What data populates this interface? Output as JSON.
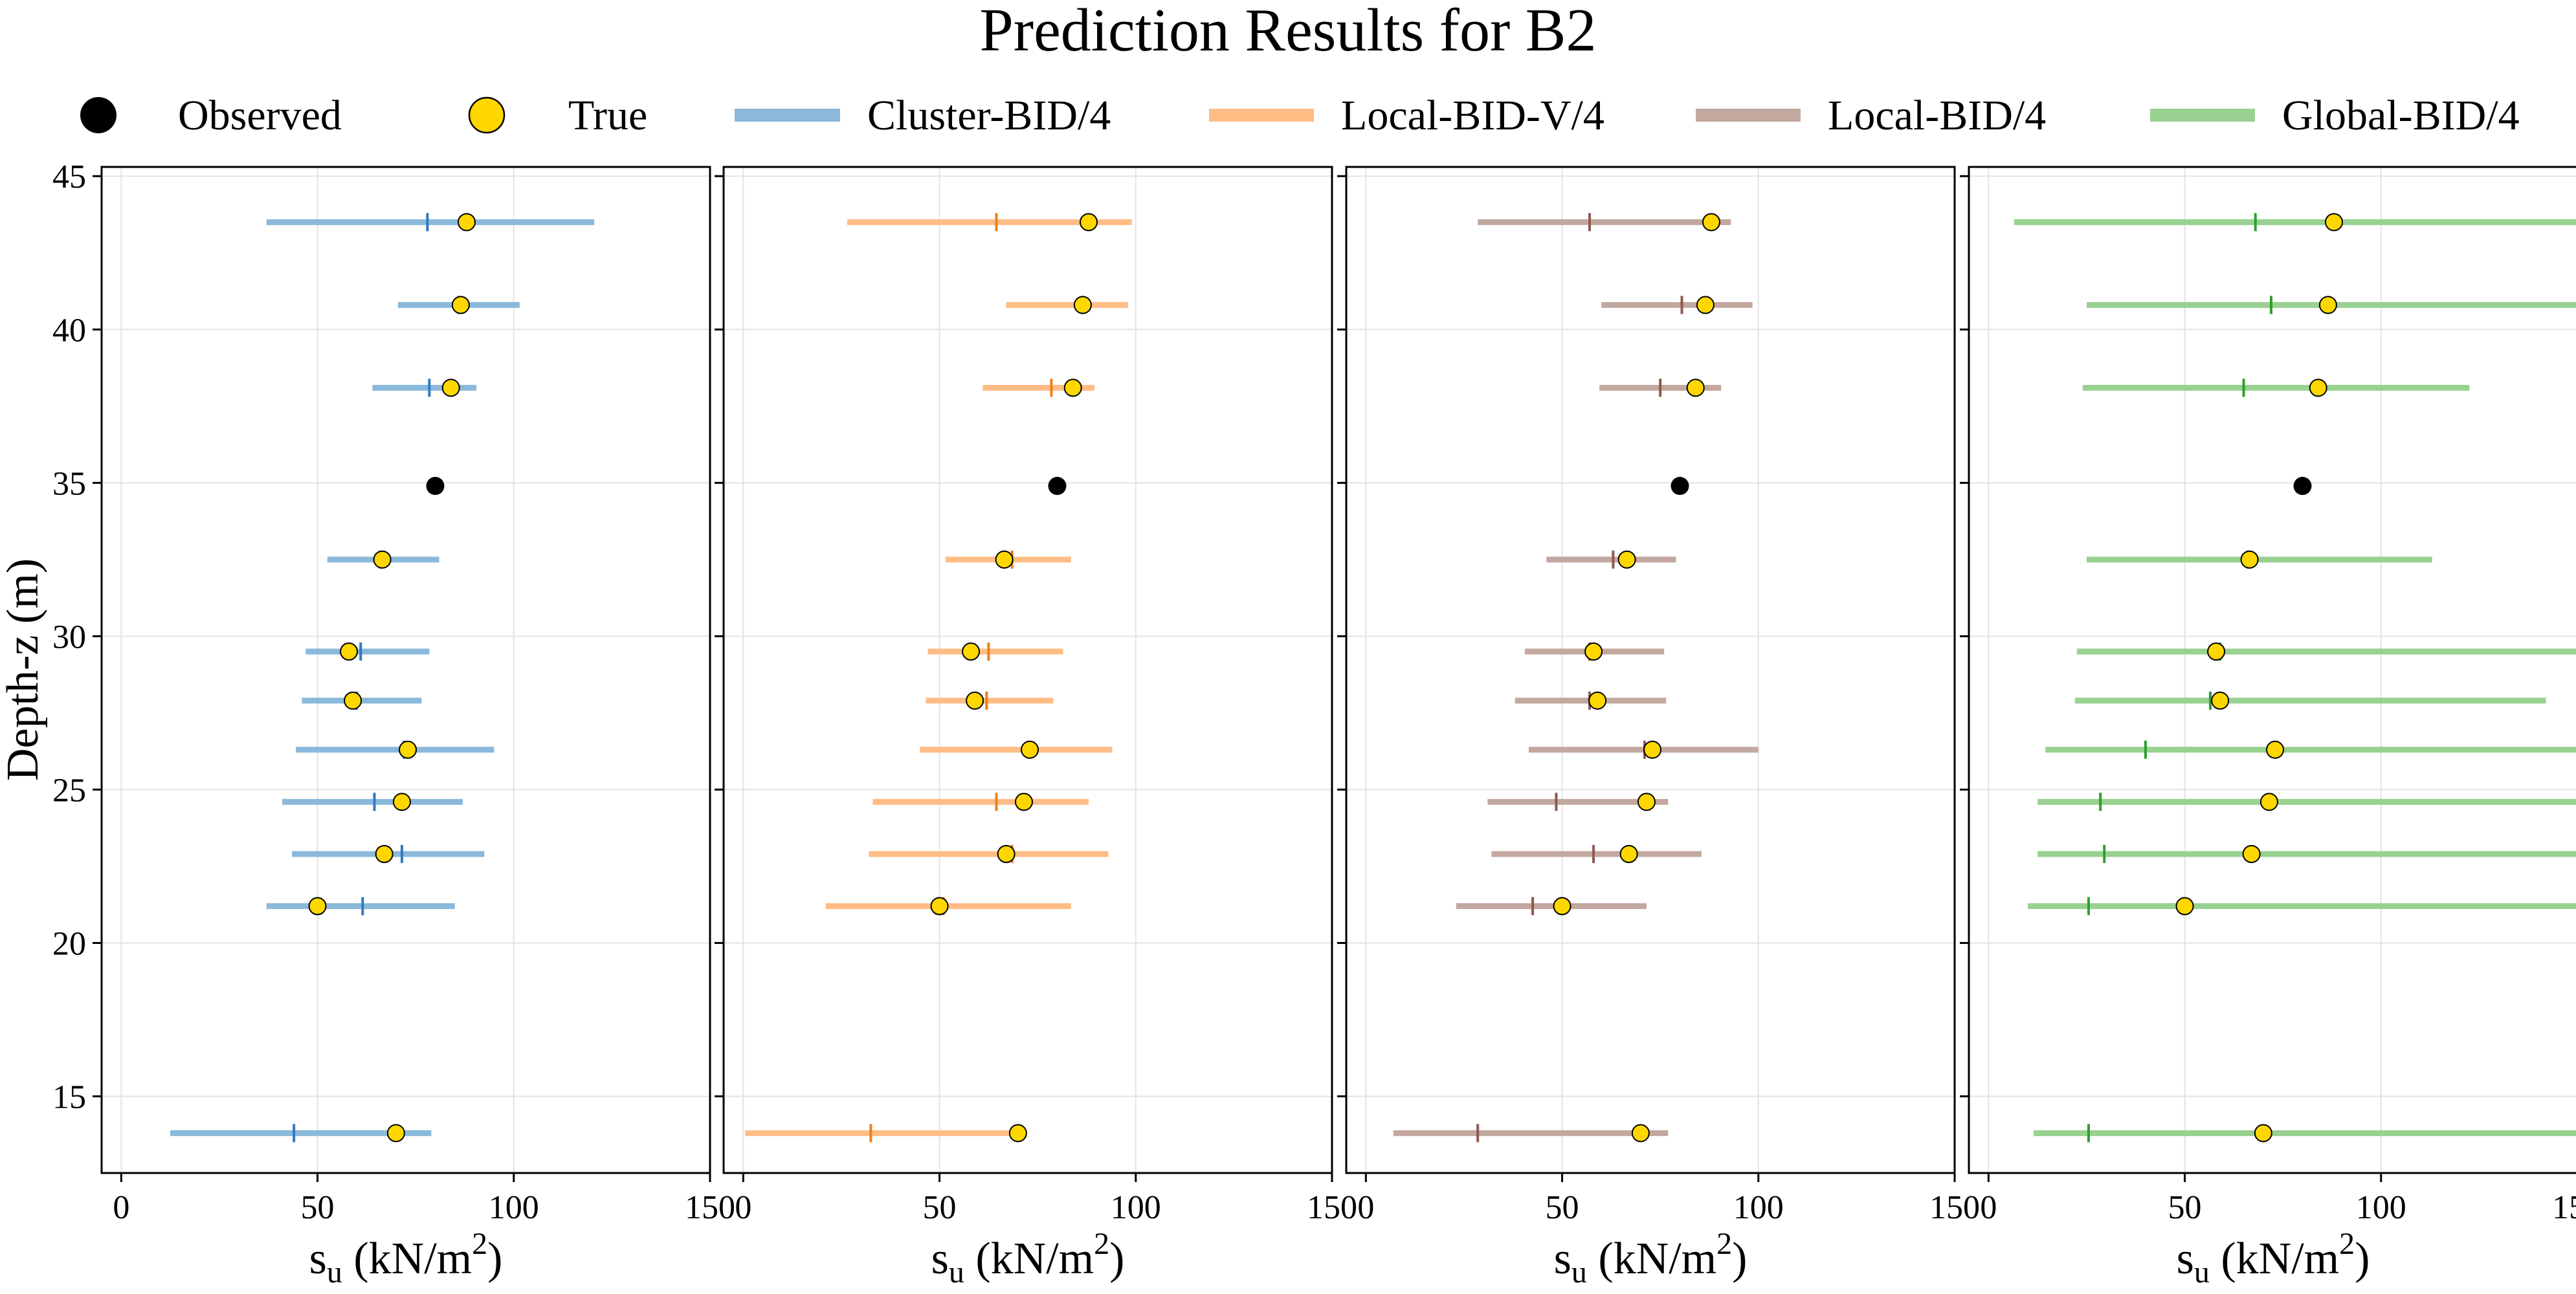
{
  "title": "Prediction Results for B2",
  "y_axis_label": "Depth-z (m)",
  "x_axis_label": {
    "base": "s",
    "subscript": "u",
    "unit_prefix": " (kN/m",
    "unit_superscript": "2",
    "unit_suffix": ")"
  },
  "legend": {
    "observed": {
      "label": "Observed",
      "color": "#000000"
    },
    "true": {
      "label": "True",
      "color": "#ffd700"
    }
  },
  "chart_data": {
    "type": "scatter",
    "title": "Prediction Results for B2",
    "ylabel": "Depth-z (m)",
    "xlabel": "s_u (kN/m^2)",
    "xlim": [
      -5,
      150
    ],
    "ylim": [
      45.3,
      12.5
    ],
    "y_inverted": true,
    "xticks": [
      0,
      50,
      100,
      150
    ],
    "yticks": [
      15,
      20,
      25,
      30,
      35,
      40,
      45
    ],
    "grid": true,
    "legend_position": "top",
    "observed": {
      "depth": 34.9,
      "su": 80
    },
    "true_points": [
      {
        "depth": 13.8,
        "su": 70
      },
      {
        "depth": 21.2,
        "su": 50
      },
      {
        "depth": 22.9,
        "su": 67
      },
      {
        "depth": 24.6,
        "su": 71.5
      },
      {
        "depth": 26.3,
        "su": 73
      },
      {
        "depth": 27.9,
        "su": 59
      },
      {
        "depth": 29.5,
        "su": 58
      },
      {
        "depth": 32.5,
        "su": 66.5
      },
      {
        "depth": 38.1,
        "su": 84
      },
      {
        "depth": 40.8,
        "su": 86.5
      },
      {
        "depth": 43.5,
        "su": 88
      }
    ],
    "series": [
      {
        "name": "Cluster-BID/4",
        "color": "#8ab9dc",
        "median_color": "#2f7bbf",
        "intervals": [
          {
            "depth": 13.8,
            "low": 12.5,
            "median": 44,
            "high": 79
          },
          {
            "depth": 21.2,
            "low": 37,
            "median": 61.5,
            "high": 85
          },
          {
            "depth": 22.9,
            "low": 43.5,
            "median": 71.5,
            "high": 92.5
          },
          {
            "depth": 24.6,
            "low": 41,
            "median": 64.5,
            "high": 87
          },
          {
            "depth": 26.3,
            "low": 44.5,
            "median": 72,
            "high": 95
          },
          {
            "depth": 27.9,
            "low": 46,
            "median": 60,
            "high": 76.5
          },
          {
            "depth": 29.5,
            "low": 47,
            "median": 61,
            "high": 78.5
          },
          {
            "depth": 32.5,
            "low": 52.5,
            "median": 66,
            "high": 81
          },
          {
            "depth": 38.1,
            "low": 64,
            "median": 78.5,
            "high": 90.5
          },
          {
            "depth": 40.8,
            "low": 70.5,
            "median": 86,
            "high": 101.5
          },
          {
            "depth": 43.5,
            "low": 37,
            "median": 78,
            "high": 120.5
          }
        ]
      },
      {
        "name": "Local-BID-V/4",
        "color": "#ffbd86",
        "median_color": "#f07f1a",
        "intervals": [
          {
            "depth": 13.8,
            "low": 0.5,
            "median": 32.5,
            "high": 72
          },
          {
            "depth": 21.2,
            "low": 21,
            "median": 51,
            "high": 83.5
          },
          {
            "depth": 22.9,
            "low": 32,
            "median": 68.5,
            "high": 93
          },
          {
            "depth": 24.6,
            "low": 33,
            "median": 64.5,
            "high": 88
          },
          {
            "depth": 26.3,
            "low": 45,
            "median": 73,
            "high": 94
          },
          {
            "depth": 27.9,
            "low": 46.5,
            "median": 62,
            "high": 79
          },
          {
            "depth": 29.5,
            "low": 47,
            "median": 62.5,
            "high": 81.5
          },
          {
            "depth": 32.5,
            "low": 51.5,
            "median": 68.5,
            "high": 83.5
          },
          {
            "depth": 38.1,
            "low": 61,
            "median": 78.5,
            "high": 89.5
          },
          {
            "depth": 40.8,
            "low": 67,
            "median": 86.5,
            "high": 98
          },
          {
            "depth": 43.5,
            "low": 26.5,
            "median": 64.5,
            "high": 99
          }
        ]
      },
      {
        "name": "Local-BID/4",
        "color": "#c3a8a0",
        "median_color": "#8c5a4d",
        "intervals": [
          {
            "depth": 13.8,
            "low": 7,
            "median": 28.5,
            "high": 77
          },
          {
            "depth": 21.2,
            "low": 23,
            "median": 42.5,
            "high": 71.5
          },
          {
            "depth": 22.9,
            "low": 32,
            "median": 58,
            "high": 85.5
          },
          {
            "depth": 24.6,
            "low": 31,
            "median": 48.5,
            "high": 77
          },
          {
            "depth": 26.3,
            "low": 41.5,
            "median": 71,
            "high": 100
          },
          {
            "depth": 27.9,
            "low": 38,
            "median": 57,
            "high": 76.5
          },
          {
            "depth": 29.5,
            "low": 40.5,
            "median": 57,
            "high": 76
          },
          {
            "depth": 32.5,
            "low": 46,
            "median": 63,
            "high": 79
          },
          {
            "depth": 38.1,
            "low": 59.5,
            "median": 75,
            "high": 90.5
          },
          {
            "depth": 40.8,
            "low": 60,
            "median": 80.5,
            "high": 98.5
          },
          {
            "depth": 43.5,
            "low": 28.5,
            "median": 57,
            "high": 93
          }
        ]
      },
      {
        "name": "Global-BID/4",
        "color": "#98d190",
        "median_color": "#2ca02c",
        "intervals": [
          {
            "depth": 13.8,
            "low": 11.5,
            "median": 25.5,
            "high": 150
          },
          {
            "depth": 21.2,
            "low": 10,
            "median": 25.5,
            "high": 150
          },
          {
            "depth": 22.9,
            "low": 12.5,
            "median": 29.5,
            "high": 150
          },
          {
            "depth": 24.6,
            "low": 12.5,
            "median": 28.5,
            "high": 150
          },
          {
            "depth": 26.3,
            "low": 14.5,
            "median": 40,
            "high": 150
          },
          {
            "depth": 27.9,
            "low": 22,
            "median": 56.5,
            "high": 142
          },
          {
            "depth": 29.5,
            "low": 22.5,
            "median": 59,
            "high": 150
          },
          {
            "depth": 32.5,
            "low": 25,
            "median": 66,
            "high": 113
          },
          {
            "depth": 38.1,
            "low": 24,
            "median": 65,
            "high": 122.5
          },
          {
            "depth": 40.8,
            "low": 25,
            "median": 72,
            "high": 150
          },
          {
            "depth": 43.5,
            "low": 6.5,
            "median": 68,
            "high": 150
          }
        ]
      }
    ]
  }
}
